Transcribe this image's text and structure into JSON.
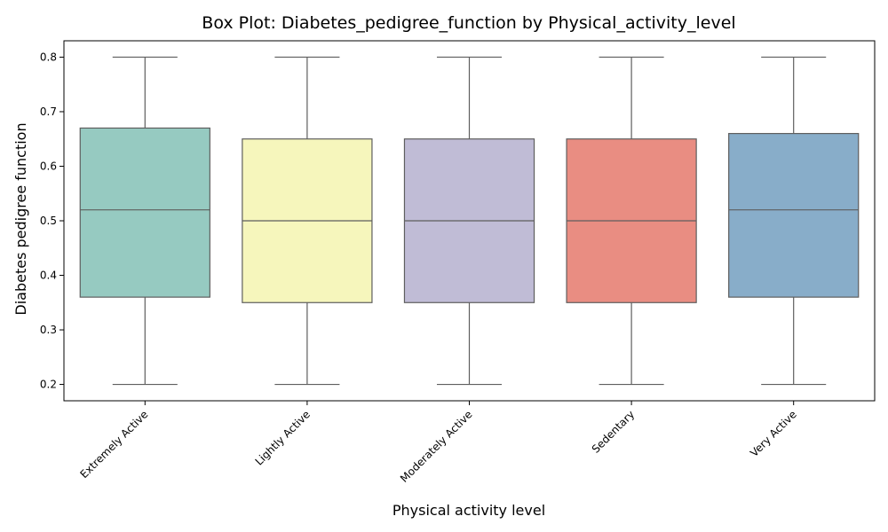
{
  "chart_data": {
    "type": "box",
    "title": "Box Plot: Diabetes_pedigree_function by Physical_activity_level",
    "xlabel": "Physical activity level",
    "ylabel": "Diabetes pedigree function",
    "ylim": [
      0.17,
      0.83
    ],
    "yticks": [
      "0.2",
      "0.3",
      "0.4",
      "0.5",
      "0.6",
      "0.7",
      "0.8"
    ],
    "grid": false,
    "legend": "none",
    "categories": [
      "Extremely Active",
      "Lightly Active",
      "Moderately Active",
      "Sedentary",
      "Very Active"
    ],
    "boxes": [
      {
        "category": "Extremely Active",
        "whisker_low": 0.2,
        "q1": 0.36,
        "median": 0.52,
        "q3": 0.67,
        "whisker_high": 0.8,
        "color": "#96cac1"
      },
      {
        "category": "Lightly Active",
        "whisker_low": 0.2,
        "q1": 0.35,
        "median": 0.5,
        "q3": 0.65,
        "whisker_high": 0.8,
        "color": "#f6f6bc"
      },
      {
        "category": "Moderately Active",
        "whisker_low": 0.2,
        "q1": 0.35,
        "median": 0.5,
        "q3": 0.65,
        "whisker_high": 0.8,
        "color": "#c0bcd6"
      },
      {
        "category": "Sedentary",
        "whisker_low": 0.2,
        "q1": 0.35,
        "median": 0.5,
        "q3": 0.65,
        "whisker_high": 0.8,
        "color": "#e98d82"
      },
      {
        "category": "Very Active",
        "whisker_low": 0.2,
        "q1": 0.36,
        "median": 0.52,
        "q3": 0.66,
        "whisker_high": 0.8,
        "color": "#88adc9"
      }
    ],
    "line_color": "#5e5e5e"
  }
}
